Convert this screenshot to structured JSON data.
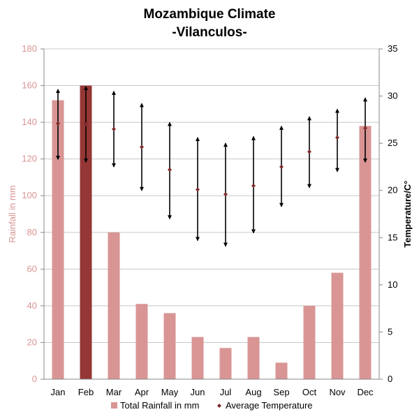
{
  "chart_data": {
    "type": "bar",
    "title": "Mozambique Climate",
    "subtitle": "-Vilanculos-",
    "categories": [
      "Jan",
      "Feb",
      "Mar",
      "Apr",
      "May",
      "Jun",
      "Jul",
      "Aug",
      "Sep",
      "Oct",
      "Nov",
      "Dec"
    ],
    "series": [
      {
        "name": "Total Rainfall in mm",
        "type": "bar",
        "axis": "left",
        "values": [
          152,
          160,
          80,
          41,
          36,
          23,
          17,
          23,
          9,
          40,
          58,
          138
        ],
        "highlight_index": 1
      },
      {
        "name": "Average Temperature",
        "type": "scatter-range",
        "axis": "right",
        "values": [
          27.1,
          27.0,
          26.5,
          24.6,
          22.2,
          20.1,
          19.6,
          20.5,
          22.5,
          24.1,
          25.6,
          26.6
        ],
        "high": [
          30.7,
          31.0,
          30.5,
          29.2,
          27.2,
          25.6,
          25.0,
          25.7,
          26.8,
          27.8,
          28.6,
          29.8
        ],
        "low": [
          23.3,
          23.0,
          22.5,
          20.0,
          17.0,
          14.7,
          14.1,
          15.5,
          18.3,
          20.3,
          22.0,
          23.0
        ]
      }
    ],
    "ylabel": "Rainfall in mm",
    "ylim": [
      0,
      180
    ],
    "yticks": [
      0,
      20,
      40,
      60,
      80,
      100,
      120,
      140,
      160,
      180
    ],
    "y2label": "Temperature/C°",
    "y2lim": [
      0,
      35
    ],
    "y2ticks": [
      0,
      5,
      10,
      15,
      20,
      25,
      30,
      35
    ],
    "grid": true,
    "legend_position": "bottom",
    "colors": {
      "bar": "#d99594",
      "bar_highlight": "#953735",
      "left_axis_text": "#d99594",
      "temp_marker": "#7f2a2a",
      "range_line": "#000000",
      "grid": "#c8c8c8"
    }
  }
}
